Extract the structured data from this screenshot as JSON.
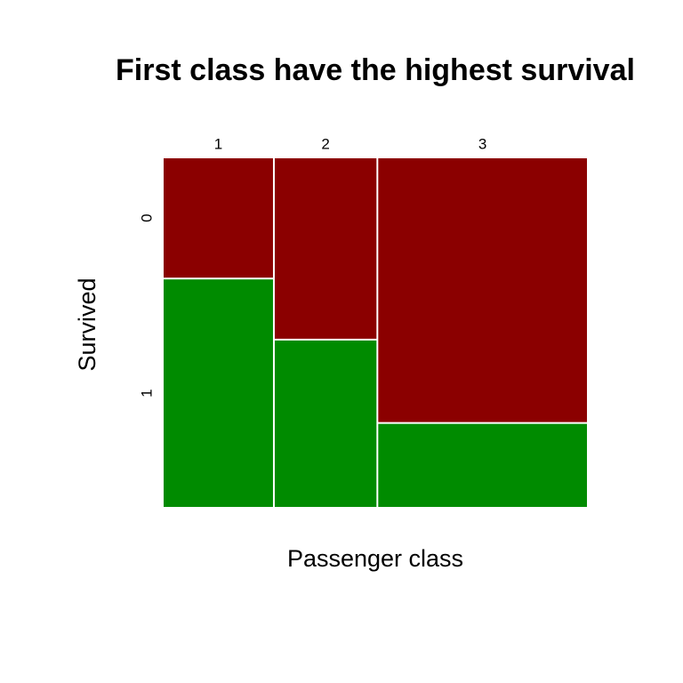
{
  "chart_data": {
    "type": "mosaic",
    "title": "First class have the highest survival",
    "x_label": "Passenger class",
    "y_label": "Survived",
    "categories": [
      "1",
      "2",
      "3"
    ],
    "series": [
      {
        "name": "0",
        "color": "#8b0000",
        "values": [
          64,
          90,
          270
        ]
      },
      {
        "name": "1",
        "color": "#008b00",
        "values": [
          122,
          83,
          85
        ]
      }
    ]
  }
}
